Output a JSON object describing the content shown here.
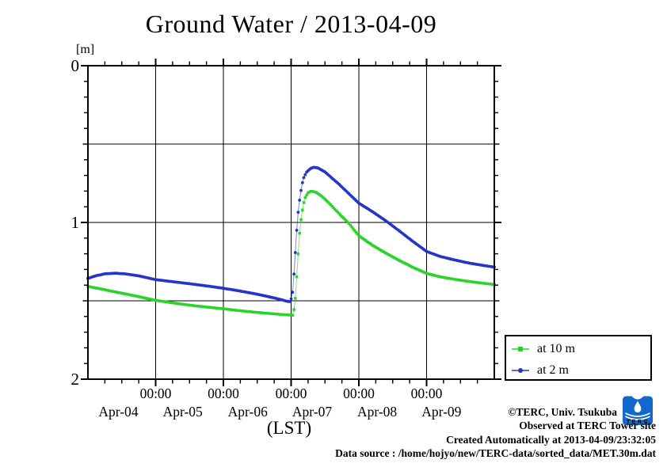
{
  "title": "Ground Water / 2013-04-09",
  "y_unit_label": "[m]",
  "x_axis_label": "(LST)",
  "colors": {
    "series_10m_green": "#28d428",
    "series_2m_blue": "#2534cc",
    "logo_blue": "#1268cc",
    "axis": "#000000"
  },
  "legend": {
    "items": [
      {
        "label": "at 10 m",
        "marker": "square",
        "color": "#28d428"
      },
      {
        "label": "at 2 m",
        "marker": "circle",
        "color": "#2534cc"
      }
    ]
  },
  "footer": {
    "line1": "©TERC, Univ. Tsukuba",
    "line2": "Observed at TERC Tower site",
    "line3": "Created Automatically at 2013-04-09/23:32:05",
    "line4": "Data source : /home/hojyo/new/TERC-data/sorted_data/MET.30m.dat",
    "logo_text": "TERC"
  },
  "chart_data": {
    "type": "line",
    "title": "Ground Water / 2013-04-09",
    "xlabel": "(LST)",
    "ylabel": "[m]",
    "x_unit": "days since 2013-04-04 00:00 LST",
    "xlim": [
      0,
      6
    ],
    "ylim": [
      0,
      2
    ],
    "y_inverted_depth": true,
    "grid": true,
    "legend_position": "outside-bottom-right",
    "x_major_ticks": [
      1,
      2,
      3,
      4,
      5
    ],
    "x_major_tick_labels": [
      "00:00",
      "00:00",
      "00:00",
      "00:00",
      "00:00"
    ],
    "x_day_labels": [
      {
        "label": "Apr-04",
        "t": 0.45
      },
      {
        "label": "Apr-05",
        "t": 1.4
      },
      {
        "label": "Apr-06",
        "t": 2.36
      },
      {
        "label": "Apr-07",
        "t": 3.31
      },
      {
        "label": "Apr-08",
        "t": 4.27
      },
      {
        "label": "Apr-09",
        "t": 5.22
      }
    ],
    "y_major_ticks": [
      0,
      1,
      2
    ],
    "y_major_tick_labels": [
      "0",
      "1",
      "2"
    ],
    "x_grid": [
      1,
      2,
      3,
      4,
      5
    ],
    "y_grid": [
      0.5,
      1.0,
      1.5
    ],
    "x_minor_step": 0.25,
    "y_minor_step": 0.1,
    "sample_step_days": 0.0208333,
    "series": [
      {
        "name": "at 10 m",
        "color": "#28d428",
        "marker": "square",
        "points": [
          [
            0,
            1.408
          ],
          [
            0.2,
            1.425
          ],
          [
            0.4,
            1.443
          ],
          [
            0.6,
            1.46
          ],
          [
            0.8,
            1.478
          ],
          [
            1,
            1.497
          ],
          [
            1.2,
            1.51
          ],
          [
            1.4,
            1.522
          ],
          [
            1.6,
            1.533
          ],
          [
            1.8,
            1.542
          ],
          [
            2,
            1.551
          ],
          [
            2.2,
            1.561
          ],
          [
            2.4,
            1.57
          ],
          [
            2.6,
            1.578
          ],
          [
            2.8,
            1.585
          ],
          [
            2.95,
            1.59
          ],
          [
            3.03,
            1.592
          ],
          [
            3.06,
            1.5
          ],
          [
            3.08,
            1.37
          ],
          [
            3.1,
            1.23
          ],
          [
            3.12,
            1.09
          ],
          [
            3.15,
            0.965
          ],
          [
            3.18,
            0.885
          ],
          [
            3.21,
            0.838
          ],
          [
            3.25,
            0.81
          ],
          [
            3.3,
            0.8
          ],
          [
            3.37,
            0.808
          ],
          [
            3.45,
            0.832
          ],
          [
            3.55,
            0.872
          ],
          [
            3.65,
            0.918
          ],
          [
            3.75,
            0.962
          ],
          [
            3.85,
            1.005
          ],
          [
            4,
            1.085
          ],
          [
            4.2,
            1.145
          ],
          [
            4.4,
            1.196
          ],
          [
            4.6,
            1.243
          ],
          [
            4.8,
            1.287
          ],
          [
            5,
            1.325
          ],
          [
            5.2,
            1.347
          ],
          [
            5.4,
            1.362
          ],
          [
            5.6,
            1.375
          ],
          [
            5.8,
            1.386
          ],
          [
            6,
            1.396
          ]
        ]
      },
      {
        "name": "at 2 m",
        "color": "#2534cc",
        "marker": "circle",
        "points": [
          [
            0,
            1.357
          ],
          [
            0.12,
            1.34
          ],
          [
            0.25,
            1.328
          ],
          [
            0.4,
            1.324
          ],
          [
            0.55,
            1.328
          ],
          [
            0.75,
            1.341
          ],
          [
            1,
            1.365
          ],
          [
            1.25,
            1.378
          ],
          [
            1.5,
            1.391
          ],
          [
            1.75,
            1.405
          ],
          [
            2,
            1.42
          ],
          [
            2.25,
            1.438
          ],
          [
            2.5,
            1.458
          ],
          [
            2.7,
            1.477
          ],
          [
            2.85,
            1.492
          ],
          [
            2.93,
            1.502
          ],
          [
            2.99,
            1.506
          ],
          [
            3.02,
            1.45
          ],
          [
            3.04,
            1.34
          ],
          [
            3.06,
            1.21
          ],
          [
            3.08,
            1.07
          ],
          [
            3.1,
            0.95
          ],
          [
            3.13,
            0.84
          ],
          [
            3.16,
            0.757
          ],
          [
            3.19,
            0.71
          ],
          [
            3.23,
            0.678
          ],
          [
            3.28,
            0.658
          ],
          [
            3.33,
            0.648
          ],
          [
            3.4,
            0.653
          ],
          [
            3.5,
            0.678
          ],
          [
            3.6,
            0.716
          ],
          [
            3.7,
            0.753
          ],
          [
            3.8,
            0.795
          ],
          [
            3.9,
            0.836
          ],
          [
            4,
            0.877
          ],
          [
            4.2,
            0.931
          ],
          [
            4.4,
            0.99
          ],
          [
            4.6,
            1.055
          ],
          [
            4.8,
            1.122
          ],
          [
            5,
            1.185
          ],
          [
            5.2,
            1.217
          ],
          [
            5.4,
            1.238
          ],
          [
            5.6,
            1.257
          ],
          [
            5.8,
            1.272
          ],
          [
            6,
            1.285
          ]
        ]
      }
    ]
  }
}
